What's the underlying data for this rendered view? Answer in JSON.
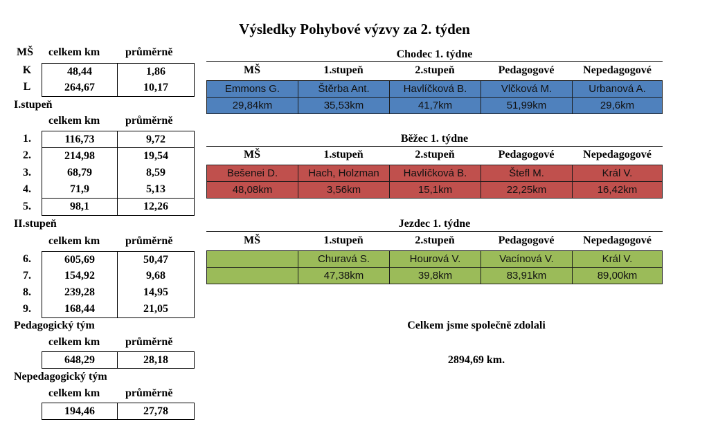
{
  "title": "Výsledky Pohybové výzvy za 2. týden",
  "left": {
    "ms_header": {
      "label": "MŠ",
      "col1": "celkem km",
      "col2": "průměrně"
    },
    "ms_rows": [
      {
        "label": "K",
        "total": "48,44",
        "avg": "1,86"
      },
      {
        "label": "L",
        "total": "264,67",
        "avg": "10,17"
      }
    ],
    "first_stage": {
      "title": "I.stupeň",
      "col1": "celkem km",
      "col2": "průměrně",
      "rows": [
        {
          "label": "1.",
          "total": "116,73",
          "avg": "9,72"
        },
        {
          "label": "2.",
          "total": "214,98",
          "avg": "19,54"
        },
        {
          "label": "3.",
          "total": "68,79",
          "avg": "8,59"
        },
        {
          "label": "4.",
          "total": "71,9",
          "avg": "5,13"
        },
        {
          "label": "5.",
          "total": "98,1",
          "avg": "12,26"
        }
      ]
    },
    "second_stage": {
      "title": "II.stupeň",
      "col1": "celkem km",
      "col2": "průměrně",
      "rows": [
        {
          "label": "6.",
          "total": "605,69",
          "avg": "50,47"
        },
        {
          "label": "7.",
          "total": "154,92",
          "avg": "9,68"
        },
        {
          "label": "8.",
          "total": "239,28",
          "avg": "14,95"
        },
        {
          "label": "9.",
          "total": "168,44",
          "avg": "21,05"
        }
      ]
    },
    "teachers": {
      "title": "Pedagogický tým",
      "col1": "celkem km",
      "col2": "průměrně",
      "total": "648,29",
      "avg": "28,18"
    },
    "staff": {
      "title": "Nepedagogický tým",
      "col1": "celkem km",
      "col2": "průměrně",
      "total": "194,46",
      "avg": "27,78"
    }
  },
  "columns": [
    "MŠ",
    "1.stupeň",
    "2.stupeň",
    "Pedagogové",
    "Nepedagogové"
  ],
  "sections": [
    {
      "title": "Chodec 1. týdne",
      "color": "#4f81bd",
      "names": [
        "Emmons G.",
        "Štěrba Ant.",
        "Havlíčková B.",
        "Vlčková M.",
        "Urbanová A."
      ],
      "distances": [
        "29,84km",
        "35,53km",
        "41,7km",
        "51,99km",
        "29,6km"
      ]
    },
    {
      "title": "Běžec 1. týdne",
      "color": "#c0504d",
      "names": [
        "Bešenei D.",
        "Hach, Holzman",
        "Havlíčková B.",
        "Štefl M.",
        "Král V."
      ],
      "distances": [
        "48,08km",
        "3,56km",
        "15,1km",
        "22,25km",
        "16,42km"
      ]
    },
    {
      "title": "Jezdec 1. týdne",
      "color": "#9bbb59",
      "names": [
        "",
        "Churavá S.",
        "Hourová V.",
        "Vacínová V.",
        "Král V."
      ],
      "distances": [
        "",
        "47,38km",
        "39,8km",
        "83,91km",
        "89,00km"
      ]
    }
  ],
  "summary": {
    "text": "Celkem jsme společně zdolali",
    "value": "2894,69 km."
  }
}
